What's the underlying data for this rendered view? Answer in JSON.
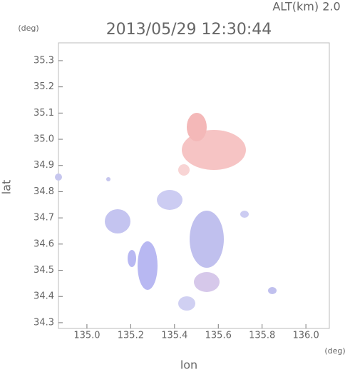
{
  "chart_data": {
    "type": "map",
    "title": "2013/05/29 12:30:44",
    "altitude_label": "ALT(km) 2.0",
    "xlabel": "lon",
    "ylabel": "lat",
    "x_unit": "(deg)",
    "y_unit": "(deg)",
    "xlim": [
      134.87,
      136.107
    ],
    "ylim": [
      34.278,
      35.368
    ],
    "xticks": [
      {
        "value": 135,
        "label": "135.0"
      },
      135.2,
      135.4,
      135.6,
      135.8,
      {
        "value": 136,
        "label": "136.0"
      }
    ],
    "yticks": [
      34.3,
      34.4,
      34.5,
      34.6,
      34.7,
      34.8,
      34.9,
      {
        "value": 35,
        "label": "35.0"
      },
      35.1,
      35.2,
      35.3
    ]
  }
}
